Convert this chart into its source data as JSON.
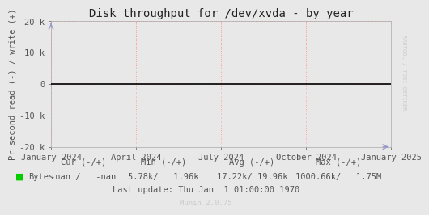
{
  "title": "Disk throughput for /dev/xvda - by year",
  "ylabel": "Pr second read (-) / write (+)",
  "background_color": "#e8e8e8",
  "plot_bg_color": "#e8e8e8",
  "grid_color": "#ff9999",
  "line_y": 0,
  "line_color": "#000000",
  "ylim": [
    -20000,
    20000
  ],
  "yticks": [
    -20000,
    -10000,
    0,
    10000,
    20000
  ],
  "ytick_labels": [
    "-20 k",
    "-10 k",
    "0",
    "10 k",
    "20 k"
  ],
  "xtick_labels": [
    "January 2024",
    "April 2024",
    "July 2024",
    "October 2024",
    "January 2025"
  ],
  "xtick_positions": [
    0.0,
    0.25,
    0.5,
    0.75,
    1.0
  ],
  "legend_color": "#00cc00",
  "legend_label": "Bytes",
  "cur_label": "Cur (-/+)",
  "min_label": "Min (-/+)",
  "avg_label": "Avg (-/+)",
  "max_label": "Max (-/+)",
  "cur_val": "-nan /   -nan",
  "min_val": "5.78k/   1.96k",
  "avg_val": "17.22k/ 19.96k",
  "max_val": "1000.66k/   1.75M",
  "last_update": "Last update: Thu Jan  1 01:00:00 1970",
  "munin_version": "Munin 2.0.75",
  "rrdtool_text": "RRDTOOL / TOBI OETIKER",
  "watermark_color": "#cccccc",
  "text_color": "#555555",
  "axis_color": "#aaaaaa",
  "font_size": 7.5,
  "title_font_size": 10,
  "arrow_color": "#9999cc"
}
